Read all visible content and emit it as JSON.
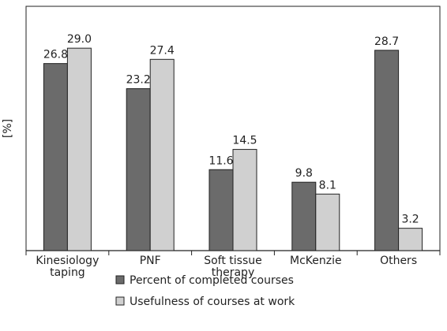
{
  "chart_data": {
    "type": "bar",
    "ylabel": "[%]",
    "categories": [
      "Kinesiology taping",
      "PNF",
      "Soft tissue therapy",
      "McKenzie",
      "Others"
    ],
    "series": [
      {
        "name": "Percent of completed courses",
        "color": "#6b6b6b",
        "values": [
          26.8,
          23.2,
          11.6,
          9.8,
          28.7
        ],
        "value_labels": [
          "26.8",
          "23.2",
          "11.6",
          "9.8",
          "28.7"
        ]
      },
      {
        "name": "Usefulness of courses at work",
        "color": "#d0d0d0",
        "values": [
          29.0,
          27.4,
          14.5,
          8.1,
          3.2
        ],
        "value_labels": [
          "29.0",
          "27.4",
          "14.5",
          "8.1",
          "3.2"
        ]
      }
    ],
    "ylim": [
      0,
      35
    ]
  }
}
